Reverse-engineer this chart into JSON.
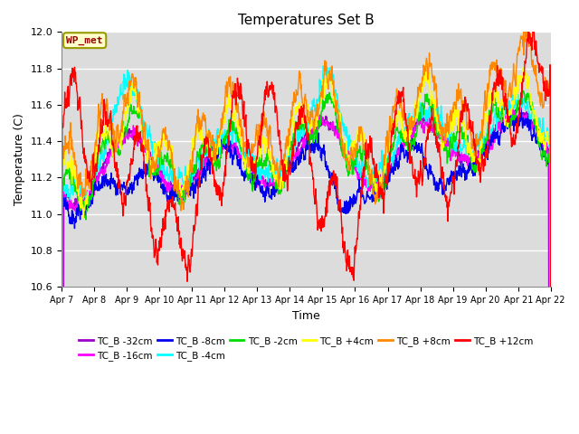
{
  "title": "Temperatures Set B",
  "ylabel": "Temperature (C)",
  "xlabel": "Time",
  "wp_met_label": "WP_met",
  "ylim": [
    10.6,
    12.0
  ],
  "yticks": [
    10.6,
    10.8,
    11.0,
    11.2,
    11.4,
    11.6,
    11.8,
    12.0
  ],
  "xtick_days": [
    7,
    8,
    9,
    10,
    11,
    12,
    13,
    14,
    15,
    16,
    17,
    18,
    19,
    20,
    21,
    22
  ],
  "series": [
    {
      "label": "TC_B -32cm",
      "color": "#9900CC"
    },
    {
      "label": "TC_B -16cm",
      "color": "#FF00FF"
    },
    {
      "label": "TC_B -8cm",
      "color": "#0000EE"
    },
    {
      "label": "TC_B -4cm",
      "color": "#00FFFF"
    },
    {
      "label": "TC_B -2cm",
      "color": "#00DD00"
    },
    {
      "label": "TC_B +4cm",
      "color": "#FFFF00"
    },
    {
      "label": "TC_B +8cm",
      "color": "#FF8800"
    },
    {
      "label": "TC_B +12cm",
      "color": "#FF0000"
    }
  ],
  "bg_color": "#DCDCDC",
  "fig_bg": "#FFFFFF",
  "line_width": 1.0
}
